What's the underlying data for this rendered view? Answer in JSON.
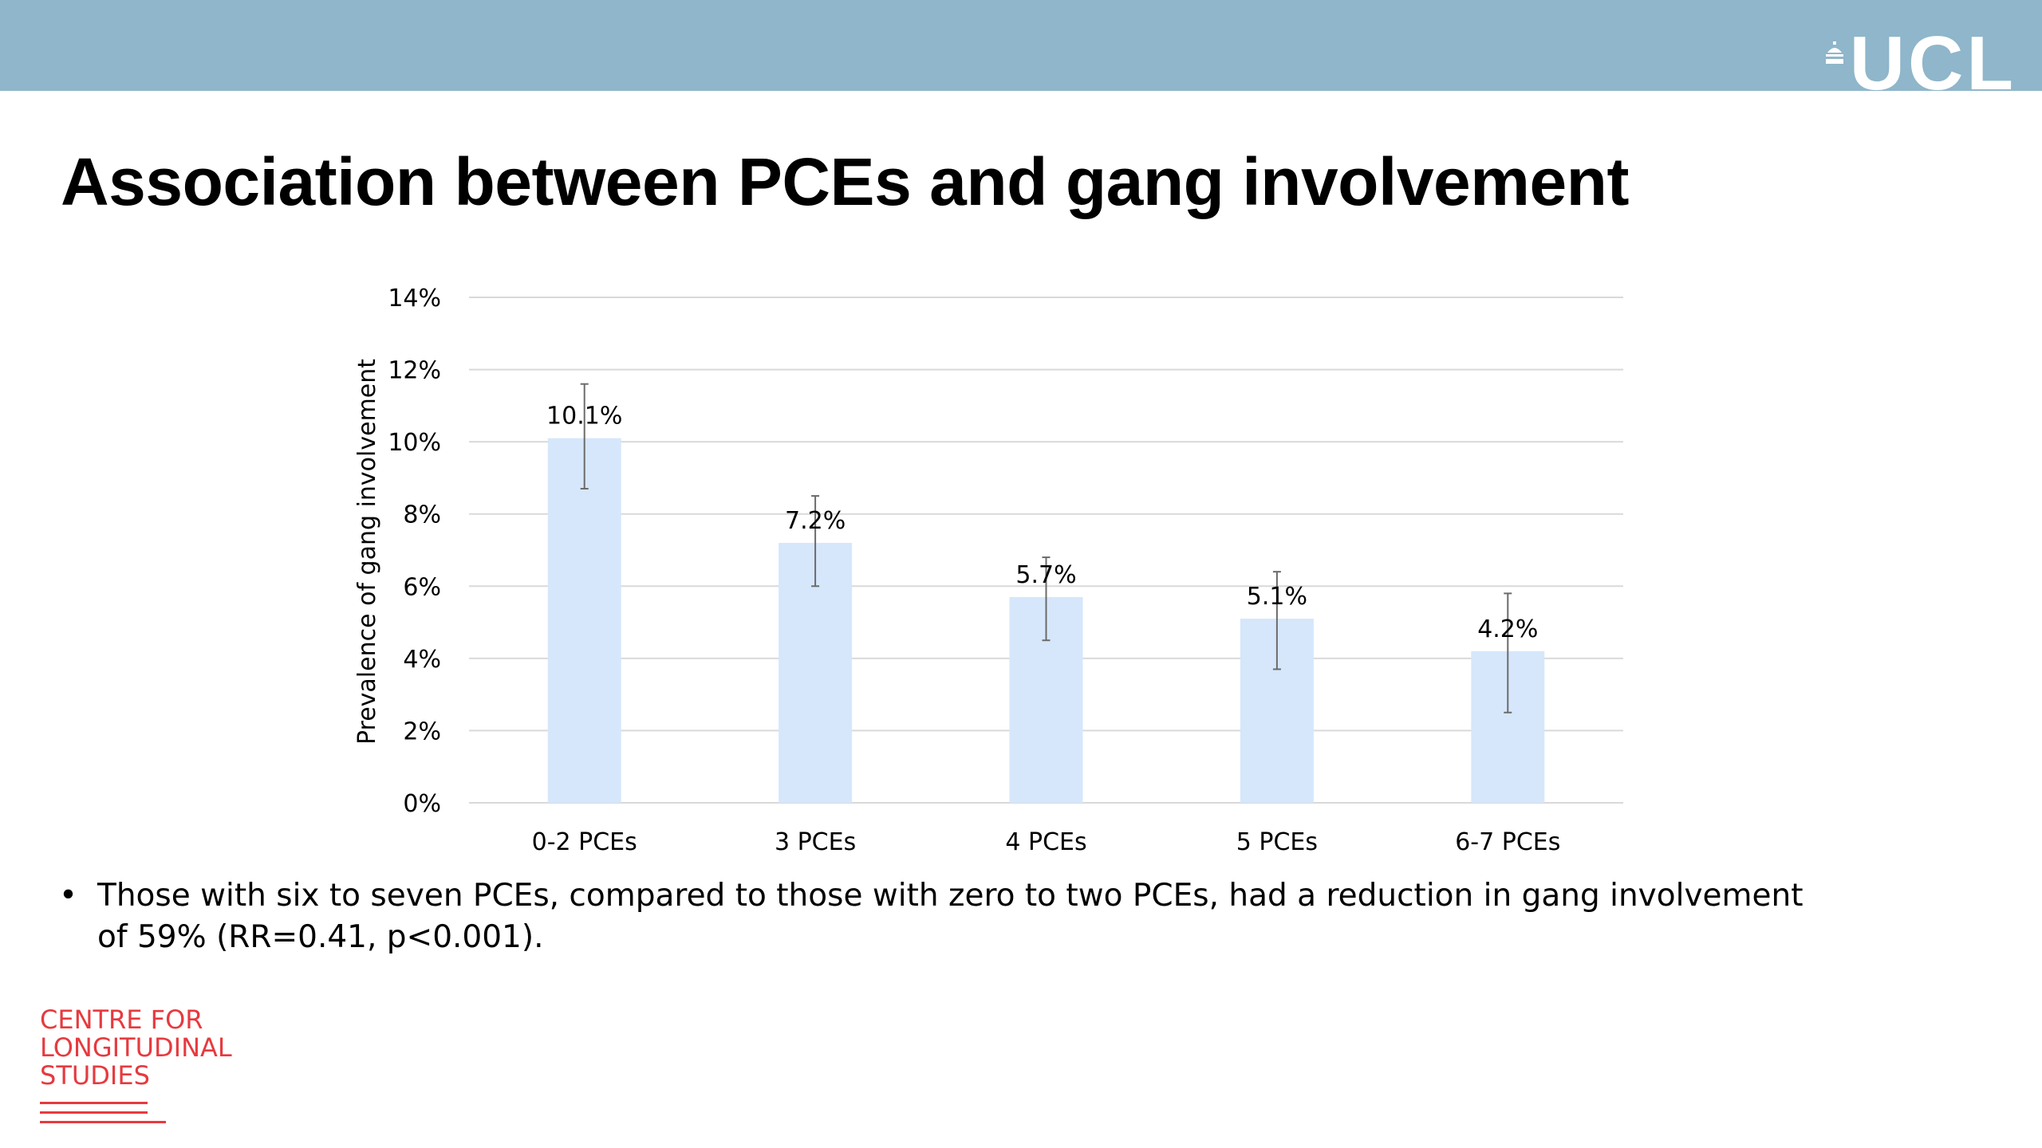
{
  "header": {
    "logo_text": "UCL",
    "band_color": "#8fb6ca"
  },
  "title": "Association between PCEs and gang involvement",
  "chart_data": {
    "type": "bar",
    "title": "",
    "xlabel": "",
    "ylabel": "Prevalence of gang involvement",
    "categories": [
      "0-2 PCEs",
      "3 PCEs",
      "4 PCEs",
      "5 PCEs",
      "6-7 PCEs"
    ],
    "values": [
      10.1,
      7.2,
      5.7,
      5.1,
      4.2
    ],
    "data_labels": [
      "10.1%",
      "7.2%",
      "5.7%",
      "5.1%",
      "4.2%"
    ],
    "error_low": [
      8.7,
      6.0,
      4.5,
      3.7,
      2.5
    ],
    "error_high": [
      11.6,
      8.5,
      6.8,
      6.4,
      5.8
    ],
    "ylim": [
      0,
      14
    ],
    "yticks": [
      0,
      2,
      4,
      6,
      8,
      10,
      12,
      14
    ],
    "ytick_labels": [
      "0%",
      "2%",
      "4%",
      "6%",
      "8%",
      "10%",
      "12%",
      "14%"
    ],
    "grid": true,
    "bar_color": "#d6e7fb",
    "error_color": "#6b6b6b"
  },
  "bullets": [
    "Those with six to seven PCEs, compared to those with zero to two PCEs, had a reduction in gang involvement of 59% (RR=0.41, p<0.001)."
  ],
  "footer_logo": {
    "line1": "CENTRE FOR",
    "line2": "LONGITUDINAL",
    "line3": "STUDIES",
    "color": "#e63a3f"
  }
}
